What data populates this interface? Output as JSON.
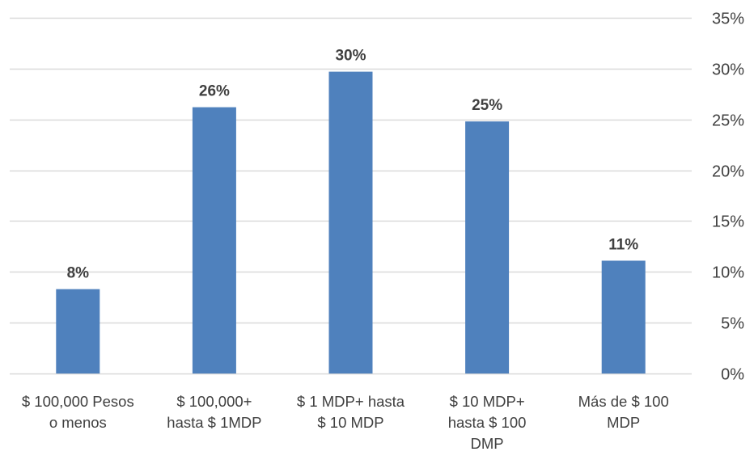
{
  "chart_data": {
    "type": "bar",
    "categories": [
      [
        "$ 100,000 Pesos",
        "o menos"
      ],
      [
        "$ 100,000+",
        "hasta $ 1MDP"
      ],
      [
        "$ 1 MDP+ hasta",
        "$ 10 MDP"
      ],
      [
        "$ 10 MDP+",
        "hasta $ 100",
        "DMP"
      ],
      [
        "Más de $ 100",
        "MDP"
      ]
    ],
    "values": [
      8.3,
      26.2,
      29.7,
      24.8,
      11.1
    ],
    "data_labels": [
      "8%",
      "26%",
      "30%",
      "25%",
      "11%"
    ],
    "title": "",
    "xlabel": "",
    "ylabel": "",
    "ylim": [
      0,
      35
    ],
    "yticks": [
      0,
      5,
      10,
      15,
      20,
      25,
      30,
      35
    ],
    "ytick_labels": [
      "0%",
      "5%",
      "10%",
      "15%",
      "20%",
      "25%",
      "30%",
      "35%"
    ],
    "yaxis_position": "right",
    "grid": true,
    "legend": "none",
    "colors": {
      "bar": "#4F81BD",
      "grid": "#D9D9D9",
      "text": "#404040"
    }
  }
}
